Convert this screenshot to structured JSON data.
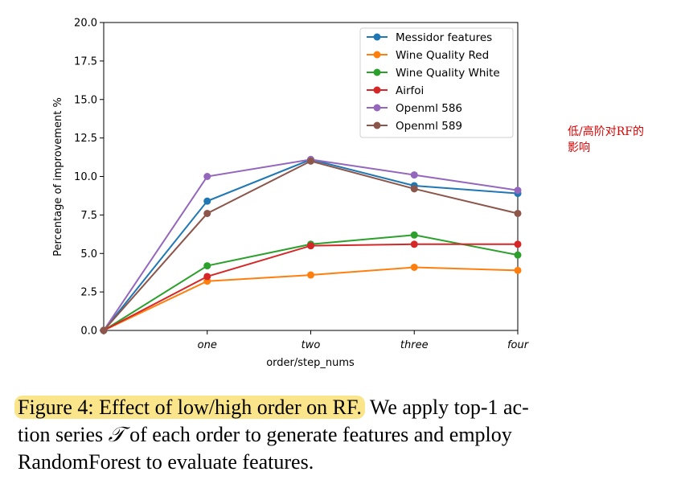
{
  "chart_data": {
    "type": "line",
    "title": "",
    "xlabel": "order/step_nums",
    "ylabel": "Percentage of improvement %",
    "categories": [
      "",
      "one",
      "two",
      "three",
      "four"
    ],
    "ylim": [
      0,
      20
    ],
    "yticks": [
      "0.0",
      "2.5",
      "5.0",
      "7.5",
      "10.0",
      "12.5",
      "15.0",
      "17.5",
      "20.0"
    ],
    "legend_position": "top-right",
    "series": [
      {
        "name": "Messidor features",
        "color": "#1f77b4",
        "values": [
          0,
          8.4,
          11.1,
          9.4,
          8.9
        ]
      },
      {
        "name": "Wine Quality Red",
        "color": "#ff7f0e",
        "values": [
          0,
          3.2,
          3.6,
          4.1,
          3.9
        ]
      },
      {
        "name": "Wine Quality White",
        "color": "#2ca02c",
        "values": [
          0,
          4.2,
          5.6,
          6.2,
          4.9
        ]
      },
      {
        "name": "Airfoi",
        "color": "#d62728",
        "values": [
          0,
          3.5,
          5.5,
          5.6,
          5.6
        ]
      },
      {
        "name": "Openml 586",
        "color": "#9467bd",
        "values": [
          0,
          10.0,
          11.1,
          10.1,
          9.1
        ]
      },
      {
        "name": "Openml 589",
        "color": "#8c564b",
        "values": [
          0,
          7.6,
          11.0,
          9.2,
          7.6
        ]
      }
    ]
  },
  "annotation": {
    "line1": "低/高阶对RF的",
    "line2": "影响"
  },
  "caption": {
    "highlight": "Figure 4: Effect of low/high order on RF.",
    "text_a": " We apply top-1 ac-",
    "text_b": "tion series ",
    "symbol": "𝒯",
    "text_c": " of each order to generate features and employ",
    "text_d": "RandomForest to evaluate features."
  }
}
